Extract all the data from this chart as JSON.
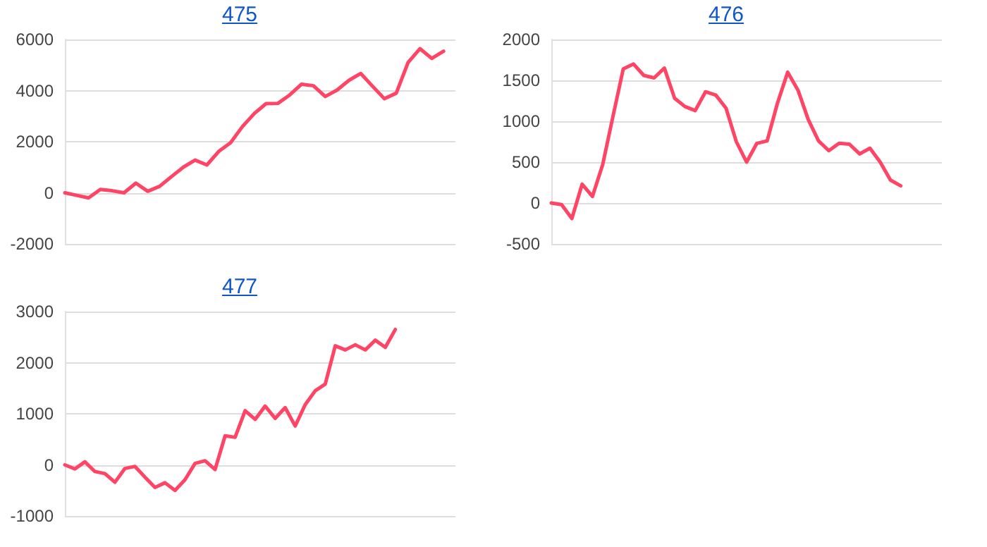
{
  "chart_data": [
    {
      "type": "line",
      "title": "475",
      "categories": [
        null,
        null,
        null,
        null,
        null,
        null,
        null,
        null,
        null,
        null,
        null,
        null,
        null,
        null,
        null,
        null,
        null,
        null,
        null,
        null,
        null,
        null,
        null,
        null,
        null,
        null,
        null,
        null,
        null,
        null,
        null,
        null,
        null,
        null
      ],
      "series": [
        {
          "color": "#ff4466",
          "values": [
            0,
            -100,
            -200,
            130,
            80,
            0,
            380,
            60,
            250,
            630,
            1000,
            1280,
            1090,
            1620,
            1960,
            2590,
            3100,
            3490,
            3500,
            3830,
            4250,
            4190,
            3770,
            4020,
            4400,
            4670,
            4170,
            3680,
            3900,
            5100,
            5640,
            5260,
            5540,
            null
          ]
        }
      ],
      "ylim": [
        -2000,
        6000
      ],
      "yticks": [
        -2000,
        0,
        2000,
        4000,
        6000
      ],
      "grid": "y",
      "tick_labels": "y",
      "marker": "none",
      "line_style": "solid"
    },
    {
      "type": "line",
      "title": "476",
      "categories": [
        null,
        null,
        null,
        null,
        null,
        null,
        null,
        null,
        null,
        null,
        null,
        null,
        null,
        null,
        null,
        null,
        null,
        null,
        null,
        null,
        null,
        null,
        null,
        null,
        null,
        null,
        null,
        null,
        null,
        null,
        null,
        null,
        null,
        null,
        null,
        null,
        null,
        null,
        null
      ],
      "series": [
        {
          "color": "#ff4466",
          "values": [
            0,
            -20,
            -190,
            230,
            80,
            470,
            1060,
            1640,
            1700,
            1560,
            1530,
            1650,
            1280,
            1180,
            1130,
            1360,
            1320,
            1160,
            750,
            500,
            730,
            760,
            1220,
            1600,
            1380,
            1020,
            760,
            640,
            730,
            720,
            600,
            670,
            500,
            280,
            210,
            null,
            null,
            null,
            null
          ]
        }
      ],
      "ylim": [
        -500,
        2000
      ],
      "yticks": [
        -500,
        0,
        500,
        1000,
        1500,
        2000
      ],
      "grid": "y",
      "tick_labels": "y",
      "marker": "none",
      "line_style": "solid"
    },
    {
      "type": "line",
      "title": "477",
      "categories": [
        null,
        null,
        null,
        null,
        null,
        null,
        null,
        null,
        null,
        null,
        null,
        null,
        null,
        null,
        null,
        null,
        null,
        null,
        null,
        null,
        null,
        null,
        null,
        null,
        null,
        null,
        null,
        null,
        null,
        null,
        null,
        null,
        null,
        null,
        null,
        null,
        null,
        null,
        null,
        null
      ],
      "series": [
        {
          "color": "#ff4466",
          "values": [
            0,
            -80,
            60,
            -130,
            -170,
            -340,
            -70,
            -30,
            -240,
            -440,
            -350,
            -500,
            -290,
            30,
            80,
            -90,
            570,
            540,
            1060,
            890,
            1150,
            910,
            1120,
            760,
            1180,
            1450,
            1580,
            2330,
            2250,
            2350,
            2250,
            2440,
            2300,
            2650,
            null,
            null,
            null,
            null,
            null,
            null
          ]
        }
      ],
      "ylim": [
        -1000,
        3000
      ],
      "yticks": [
        -1000,
        0,
        1000,
        2000,
        3000
      ],
      "grid": "y",
      "tick_labels": "y",
      "marker": "none",
      "line_style": "solid"
    }
  ]
}
